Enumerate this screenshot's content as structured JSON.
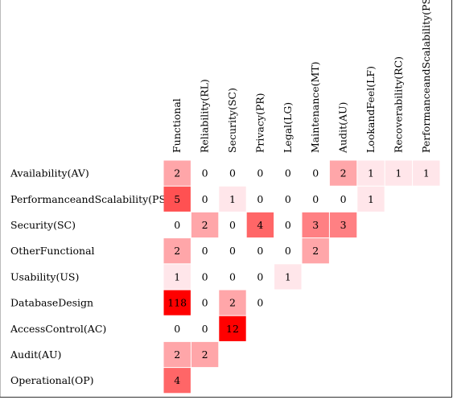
{
  "chart_data": {
    "type": "heatmap",
    "title": "",
    "xlabel": "",
    "ylabel": "",
    "columns": [
      "Functional",
      "Reliability(RL)",
      "Security(SC)",
      "Privacy(PR)",
      "Legal(LG)",
      "Maintenance(MT)",
      "Audit(AU)",
      "LookandFeel(LF)",
      "Recoverability(RC)",
      "PerformanceandScalability(PS)"
    ],
    "rows": [
      "Availability(AV)",
      "PerformanceandScalability(PS)",
      "Security(SC)",
      "OtherFunctional",
      "Usability(US)",
      "DatabaseDesign",
      "AccessControl(AC)",
      "Audit(AU)",
      "Operational(OP)"
    ],
    "values": [
      [
        2,
        0,
        0,
        0,
        0,
        0,
        2,
        1,
        1,
        1
      ],
      [
        5,
        0,
        1,
        0,
        0,
        0,
        0,
        1,
        null,
        null
      ],
      [
        0,
        2,
        0,
        4,
        0,
        3,
        3,
        null,
        null,
        null
      ],
      [
        2,
        0,
        0,
        0,
        0,
        2,
        null,
        null,
        null,
        null
      ],
      [
        1,
        0,
        0,
        0,
        1,
        null,
        null,
        null,
        null,
        null
      ],
      [
        118,
        0,
        2,
        0,
        null,
        null,
        null,
        null,
        null,
        null
      ],
      [
        0,
        0,
        12,
        null,
        null,
        null,
        null,
        null,
        null,
        null
      ],
      [
        2,
        2,
        null,
        null,
        null,
        null,
        null,
        null,
        null,
        null
      ],
      [
        4,
        null,
        null,
        null,
        null,
        null,
        null,
        null,
        null,
        null
      ]
    ],
    "colors": {
      "max": "#ff0000",
      "low": "#ffe6ea",
      "text": "#000000"
    }
  }
}
